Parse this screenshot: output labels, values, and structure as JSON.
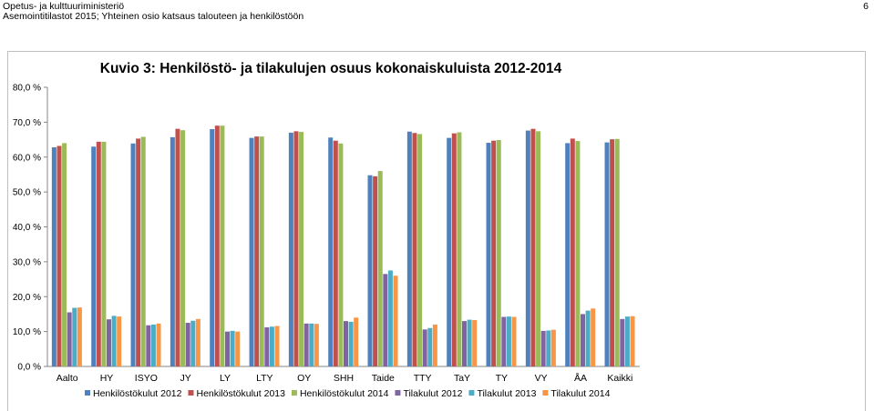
{
  "header": {
    "line1": "Opetus- ja kulttuuriministeriö",
    "line2": "Asemointitilastot 2015; Yhteinen osio katsaus talouteen ja henkilöstöön",
    "page_number": "6"
  },
  "chart_data": {
    "type": "bar",
    "title": "Kuvio 3: Henkilöstö- ja tilakulujen osuus kokonaiskuluista 2012-2014",
    "xlabel": "",
    "ylabel": "",
    "ylim": [
      0,
      80
    ],
    "yticks": [
      "0,0 %",
      "10,0 %",
      "20,0 %",
      "30,0 %",
      "40,0 %",
      "50,0 %",
      "60,0 %",
      "70,0 %",
      "80,0 %"
    ],
    "grid": false,
    "legend_position": "bottom",
    "categories": [
      "Aalto",
      "HY",
      "ISYO",
      "JY",
      "LY",
      "LTY",
      "OY",
      "SHH",
      "Taide",
      "TTY",
      "TaY",
      "TY",
      "VY",
      "ÅA",
      "Kaikki"
    ],
    "series": [
      {
        "name": "Henkilöstökulut 2012",
        "color": "#4f81bd",
        "values": [
          62.8,
          63.0,
          63.9,
          65.7,
          68.0,
          65.5,
          67.0,
          65.6,
          54.8,
          67.3,
          65.5,
          64.1,
          67.6,
          64.0,
          64.2
        ]
      },
      {
        "name": "Henkilöstökulut 2013",
        "color": "#c0504d",
        "values": [
          63.2,
          64.4,
          65.3,
          68.1,
          69.0,
          65.9,
          67.4,
          64.7,
          54.5,
          66.9,
          66.8,
          64.7,
          68.1,
          65.3,
          65.1
        ]
      },
      {
        "name": "Henkilöstökulut 2014",
        "color": "#9bbb59",
        "values": [
          64.0,
          64.4,
          65.8,
          67.7,
          69.0,
          65.9,
          67.2,
          63.9,
          56.0,
          66.6,
          67.1,
          64.9,
          67.4,
          64.6,
          65.2
        ]
      },
      {
        "name": "Tilakulut 2012",
        "color": "#8064a2",
        "values": [
          15.5,
          13.5,
          11.8,
          12.5,
          10.0,
          11.2,
          12.3,
          13.0,
          26.5,
          10.6,
          13.0,
          14.2,
          10.2,
          15.0,
          13.6
        ]
      },
      {
        "name": "Tilakulut 2013",
        "color": "#4bacc6",
        "values": [
          16.8,
          14.5,
          12.0,
          13.1,
          10.2,
          11.4,
          12.3,
          12.8,
          27.5,
          11.0,
          13.4,
          14.3,
          10.3,
          16.0,
          14.3
        ]
      },
      {
        "name": "Tilakulut 2014",
        "color": "#f79646",
        "values": [
          16.9,
          14.3,
          12.3,
          13.6,
          10.0,
          11.6,
          12.2,
          14.0,
          26.0,
          12.0,
          13.3,
          14.2,
          10.5,
          16.6,
          14.4
        ]
      }
    ]
  }
}
